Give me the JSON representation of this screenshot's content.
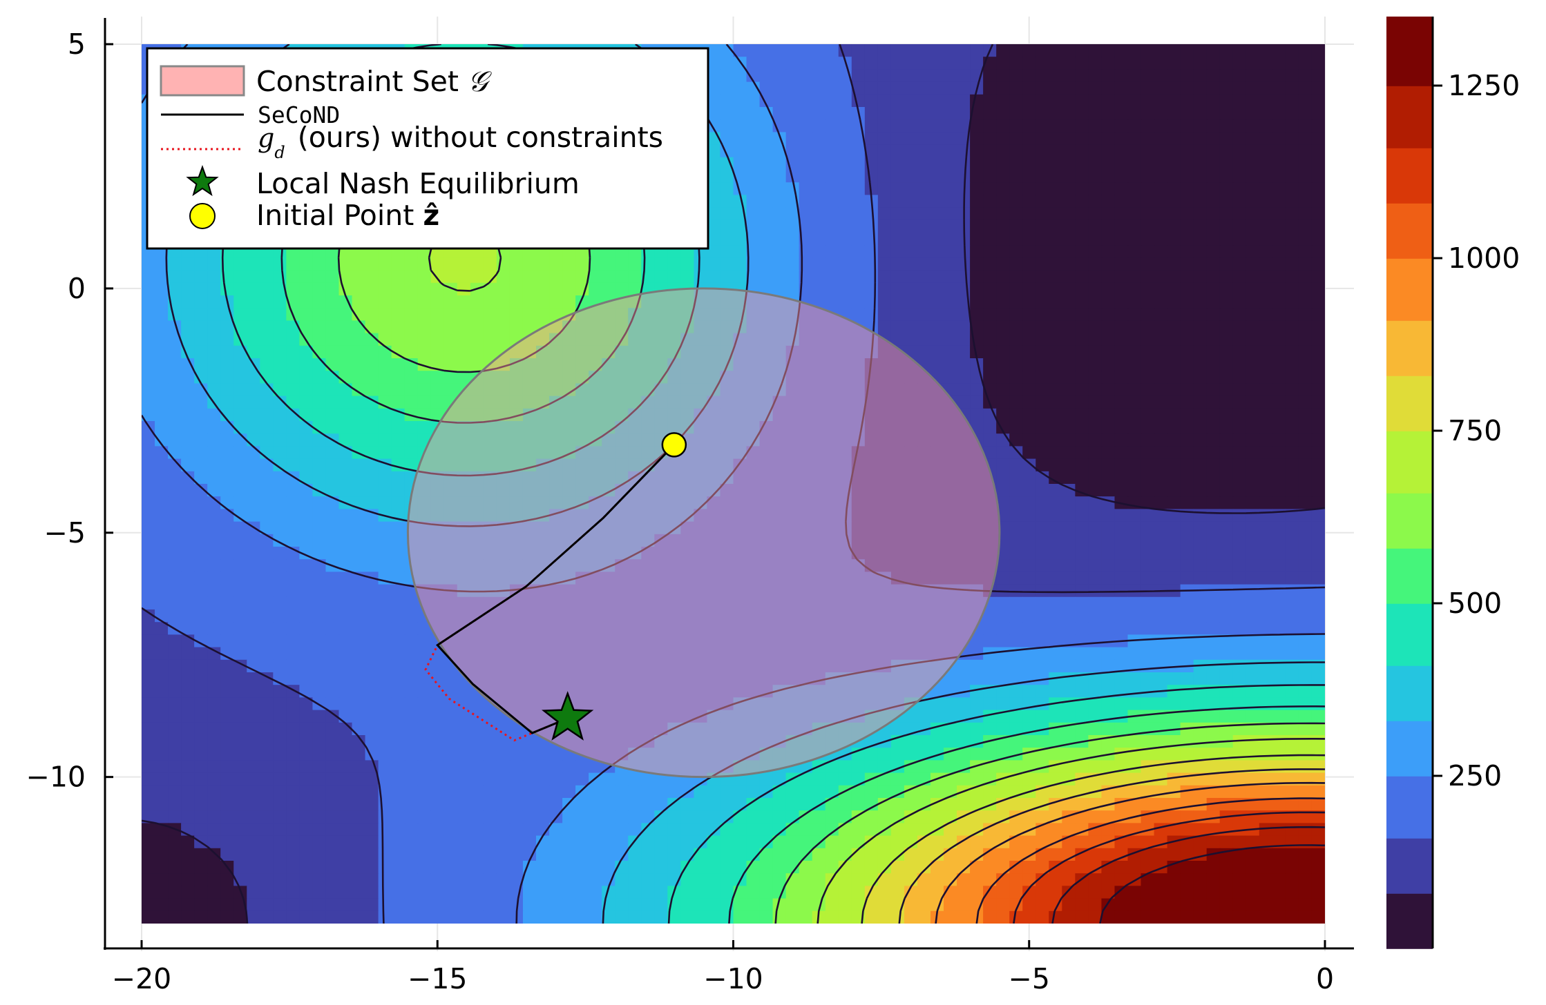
{
  "chart_data": {
    "type": "contour",
    "title": "",
    "xlabel": "",
    "ylabel": "",
    "xlim": [
      -20,
      0
    ],
    "ylim": [
      -13,
      5
    ],
    "xticks": [
      -20,
      -15,
      -10,
      -5,
      0
    ],
    "xtick_labels": [
      "−20",
      "−15",
      "−10",
      "−5",
      "0"
    ],
    "yticks": [
      5,
      0,
      -5,
      -10
    ],
    "ytick_labels": [
      "5",
      "0",
      "−5",
      "−10"
    ],
    "grid": true,
    "legend_position": "top-left",
    "colorbar": {
      "range": [
        0,
        1350
      ],
      "ticks": [
        250,
        500,
        750,
        1000,
        1250
      ],
      "tick_labels": [
        "250",
        "500",
        "750",
        "1000",
        "1250"
      ],
      "levels": [
        0,
        80,
        160,
        250,
        330,
        410,
        500,
        580,
        660,
        750,
        830,
        910,
        1000,
        1080,
        1160,
        1250,
        1350
      ],
      "colors": [
        "#2f1238",
        "#3f3fa5",
        "#4670e6",
        "#3c9ef9",
        "#25c5e0",
        "#1de4b8",
        "#45f57b",
        "#8cf94b",
        "#b5f237",
        "#e0dc38",
        "#f8b835",
        "#fb8a24",
        "#ef5f15",
        "#d93808",
        "#b11d02",
        "#7a0403"
      ]
    },
    "constraint_set": {
      "shape": "ellipse",
      "center": [
        -10.5,
        -5
      ],
      "radius_x": 5,
      "radius_y": 5,
      "fill": "#ff9a9a",
      "opacity": 0.45
    },
    "series": [
      {
        "name": "SeCoND",
        "color": "#000000",
        "style": "solid",
        "points": [
          [
            -11,
            -3.2
          ],
          [
            -12.2,
            -4.7
          ],
          [
            -13.5,
            -6.1
          ],
          [
            -15,
            -7.3
          ],
          [
            -14.4,
            -8.1
          ],
          [
            -13.4,
            -9.1
          ],
          [
            -12.8,
            -8.8
          ]
        ]
      },
      {
        "name": "(ours) without constraints",
        "color": "#e8141e",
        "style": "dotted",
        "points": [
          [
            -11,
            -3.2
          ],
          [
            -12.2,
            -4.7
          ],
          [
            -13.5,
            -6.1
          ],
          [
            -15,
            -7.3
          ],
          [
            -15.2,
            -7.8
          ],
          [
            -14.8,
            -8.4
          ],
          [
            -13.7,
            -9.25
          ],
          [
            -12.8,
            -8.8
          ]
        ]
      }
    ],
    "markers": [
      {
        "name": "Local Nash Equilibrium",
        "x": -12.8,
        "y": -8.8,
        "shape": "star",
        "color": "#0e7a0e"
      },
      {
        "name": "Initial Point",
        "x": -11,
        "y": -3.2,
        "shape": "circle",
        "color": "#ffff00"
      }
    ]
  },
  "legend": {
    "constraint_label": "Constraint Set",
    "constraint_symbol": "𝒢",
    "second_label": "SeCoND",
    "gd_symbol": "g",
    "gd_subscript": "d",
    "gd_label": "(ours) without constraints",
    "nash_label": "Local Nash Equilibrium",
    "initial_label": "Initial Point",
    "initial_symbol": "ẑ"
  }
}
